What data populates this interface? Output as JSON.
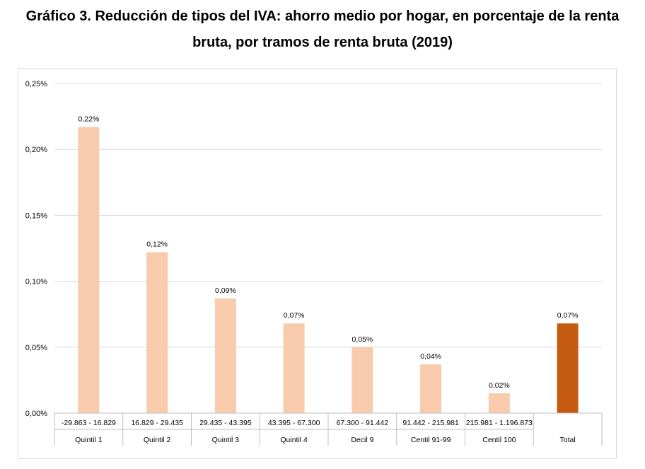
{
  "title": {
    "line1": "Gráfico 3. Reducción de tipos del IVA: ahorro medio por hogar, en porcentaje de la renta",
    "line2": "bruta, por tramos de renta bruta (2019)"
  },
  "colors": {
    "bar": "#F8CBAD",
    "bar_total": "#C55A11",
    "grid": "#D9D9D9",
    "axis": "#BFBFBF"
  },
  "chart_data": {
    "type": "bar",
    "title": "Gráfico 3. Reducción de tipos del IVA: ahorro medio por hogar, en porcentaje de la renta bruta, por tramos de renta bruta (2019)",
    "categories": [
      {
        "range": "-29.863 - 16.829",
        "group": "Quintil 1"
      },
      {
        "range": "16.829 - 29.435",
        "group": "Quintil 2"
      },
      {
        "range": "29.435 - 43.395",
        "group": "Quintil 3"
      },
      {
        "range": "43.395 - 67.300",
        "group": "Quintil 4"
      },
      {
        "range": "67.300 - 91.442",
        "group": "Decil 9"
      },
      {
        "range": "91.442 - 215.981",
        "group": "Centil 91-99"
      },
      {
        "range": "215.981 - 1.196.873",
        "group": "Centil 100"
      },
      {
        "range": "",
        "group": "Total"
      }
    ],
    "values": [
      0.217,
      0.122,
      0.087,
      0.068,
      0.05,
      0.037,
      0.015,
      0.068
    ],
    "data_labels": [
      "0,22%",
      "0,12%",
      "0,09%",
      "0,07%",
      "0,05%",
      "0,04%",
      "0,02%",
      "0,07%"
    ],
    "highlight_index": 7,
    "ylim": [
      0,
      0.25
    ],
    "yticks": [
      0,
      0.05,
      0.1,
      0.15,
      0.2,
      0.25
    ],
    "ytick_labels": [
      "0,00%",
      "0,05%",
      "0,10%",
      "0,15%",
      "0,20%",
      "0,25%"
    ],
    "xlabel": "",
    "ylabel": "",
    "grid": true,
    "legend": "none"
  }
}
